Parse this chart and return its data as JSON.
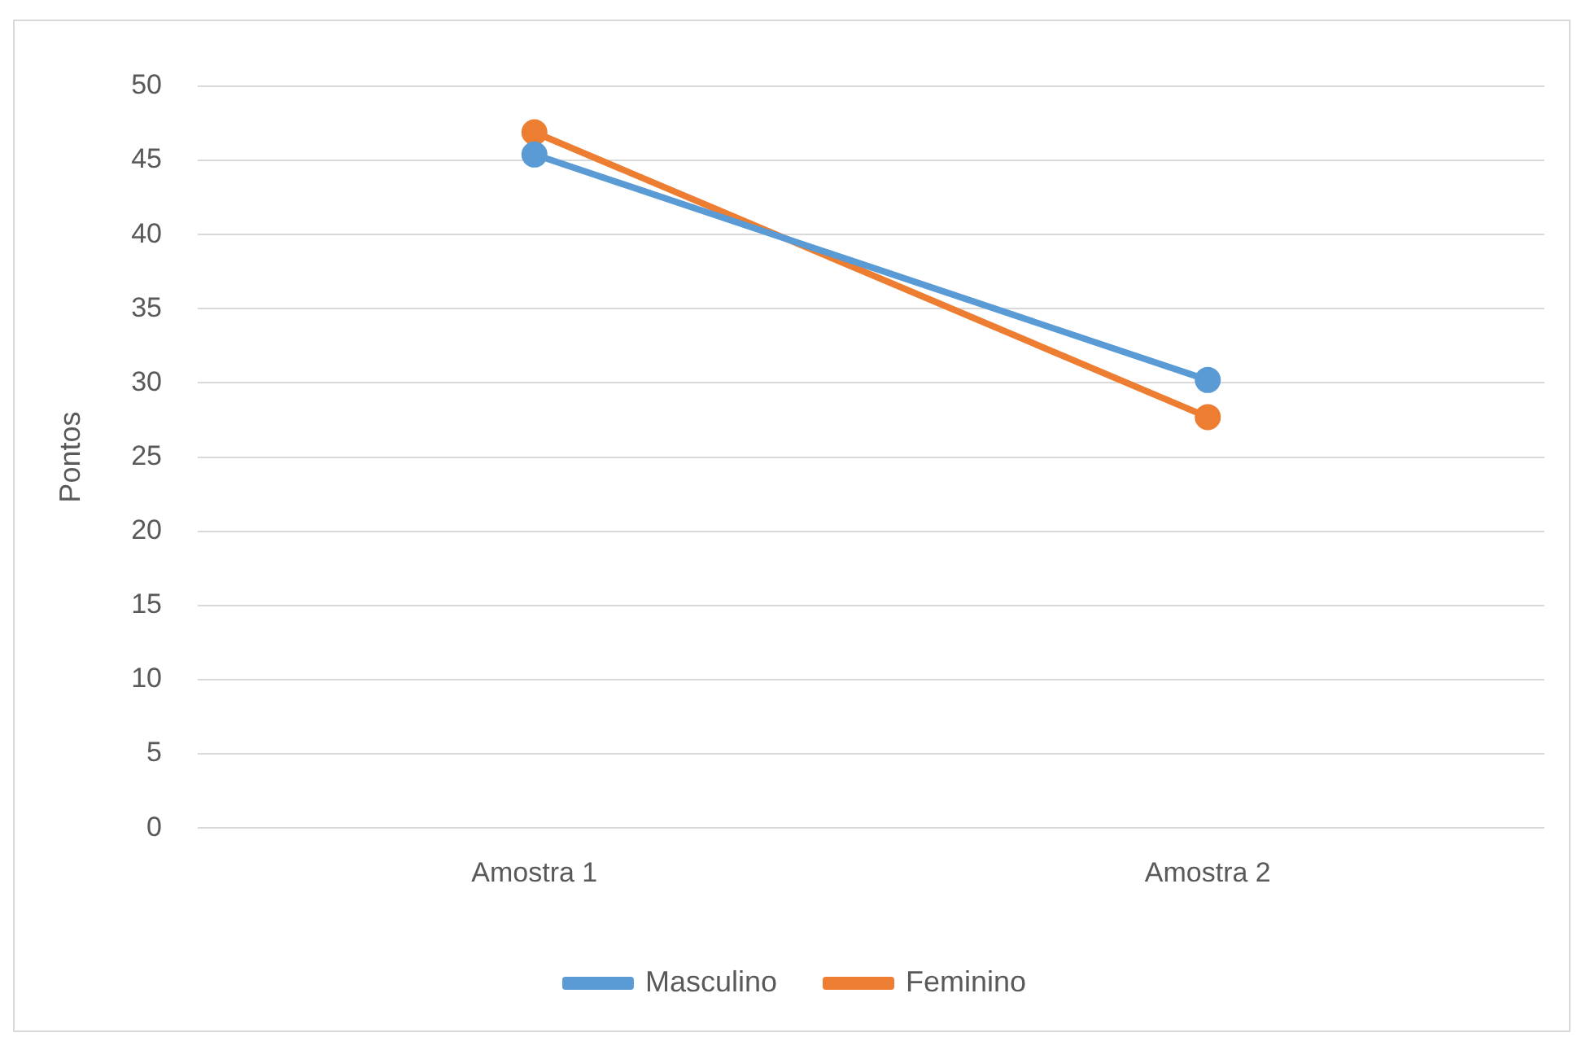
{
  "chart_data": {
    "type": "line",
    "ylabel": "Pontos",
    "categories": [
      "Amostra 1",
      "Amostra 2"
    ],
    "series": [
      {
        "name": "Masculino",
        "color": "#5b9bd5",
        "values": [
          45.4,
          30.2
        ]
      },
      {
        "name": "Feminino",
        "color": "#ed7d31",
        "values": [
          46.9,
          27.7
        ]
      }
    ],
    "ylim": [
      0,
      50
    ],
    "yticks": [
      0,
      5,
      10,
      15,
      20,
      25,
      30,
      35,
      40,
      45,
      50
    ],
    "grid": "y",
    "legend": "bottom",
    "marker": "circle",
    "line_style": "solid"
  }
}
